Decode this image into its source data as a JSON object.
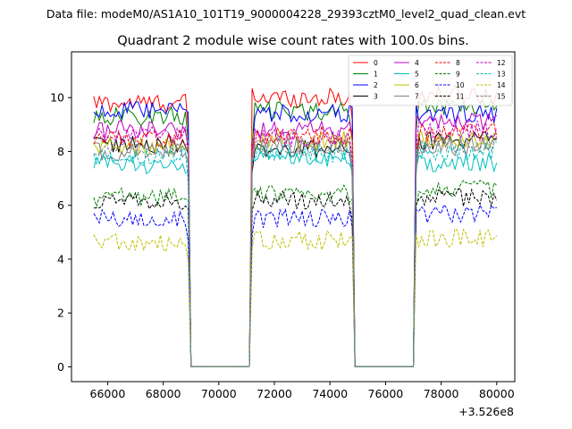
{
  "chart_data": {
    "type": "line",
    "suptitle": "Data file: modeM0/AS1A10_101T19_9000004228_29393cztM0_level2_quad_clean.evt",
    "title": "Quadrant 2 module wise count rates with 100.0s bins.",
    "xlabel": "",
    "ylabel": "",
    "x_offset_label": "+3.526e8",
    "x_offset": 352600000,
    "xlim": [
      64700,
      80650
    ],
    "ylim": [
      -0.55,
      11.7
    ],
    "x_ticks": [
      66000,
      68000,
      70000,
      72000,
      74000,
      76000,
      78000,
      80000
    ],
    "x_tick_labels": [
      "66000",
      "68000",
      "70000",
      "72000",
      "74000",
      "76000",
      "78000",
      "80000"
    ],
    "y_ticks": [
      0,
      2,
      4,
      6,
      8,
      10
    ],
    "y_tick_labels": [
      "0",
      "2",
      "4",
      "6",
      "8",
      "10"
    ],
    "bin_size_s": 100,
    "x_range": [
      65500,
      80000
    ],
    "zero_rate_intervals": [
      [
        69000,
        71100
      ],
      [
        74900,
        77000
      ]
    ],
    "legend_location": "upper right",
    "legend_columns": 4,
    "series": [
      {
        "name": "0",
        "color": "#ff0000",
        "linestyle": "solid",
        "mean_segments": [
          9.8,
          10.0,
          10.1
        ]
      },
      {
        "name": "1",
        "color": "#008000",
        "linestyle": "solid",
        "mean_segments": [
          9.3,
          9.5,
          9.7
        ]
      },
      {
        "name": "2",
        "color": "#0000ff",
        "linestyle": "solid",
        "mean_segments": [
          9.5,
          9.4,
          9.4
        ]
      },
      {
        "name": "3",
        "color": "#000000",
        "linestyle": "solid",
        "mean_segments": [
          8.3,
          8.1,
          8.4
        ]
      },
      {
        "name": "4",
        "color": "#bf00bf",
        "linestyle": "solid",
        "mean_segments": [
          8.8,
          8.8,
          9.1
        ]
      },
      {
        "name": "5",
        "color": "#00bfbf",
        "linestyle": "solid",
        "mean_segments": [
          7.5,
          7.7,
          7.6
        ]
      },
      {
        "name": "6",
        "color": "#bfbf00",
        "linestyle": "solid",
        "mean_segments": [
          8.2,
          8.4,
          8.5
        ]
      },
      {
        "name": "7",
        "color": "#808080",
        "linestyle": "solid",
        "mean_segments": [
          8.0,
          8.2,
          8.2
        ]
      },
      {
        "name": "8",
        "color": "#ff0000",
        "linestyle": "dashed",
        "mean_segments": [
          8.5,
          8.6,
          8.7
        ]
      },
      {
        "name": "9",
        "color": "#008000",
        "linestyle": "dashed",
        "mean_segments": [
          6.3,
          6.4,
          6.6
        ]
      },
      {
        "name": "10",
        "color": "#0000ff",
        "linestyle": "dashed",
        "mean_segments": [
          5.5,
          5.5,
          5.7
        ]
      },
      {
        "name": "11",
        "color": "#000000",
        "linestyle": "dashed",
        "mean_segments": [
          6.2,
          6.2,
          6.3
        ]
      },
      {
        "name": "12",
        "color": "#bf00bf",
        "linestyle": "dashed",
        "mean_segments": [
          8.6,
          8.5,
          8.8
        ]
      },
      {
        "name": "13",
        "color": "#00bfbf",
        "linestyle": "dashed",
        "mean_segments": [
          7.8,
          7.9,
          8.0
        ]
      },
      {
        "name": "14",
        "color": "#bfbf00",
        "linestyle": "dashed",
        "mean_segments": [
          4.6,
          4.7,
          4.8
        ]
      },
      {
        "name": "15",
        "color": "#808080",
        "linestyle": "dashed",
        "mean_segments": [
          8.1,
          8.2,
          8.3
        ]
      }
    ]
  }
}
